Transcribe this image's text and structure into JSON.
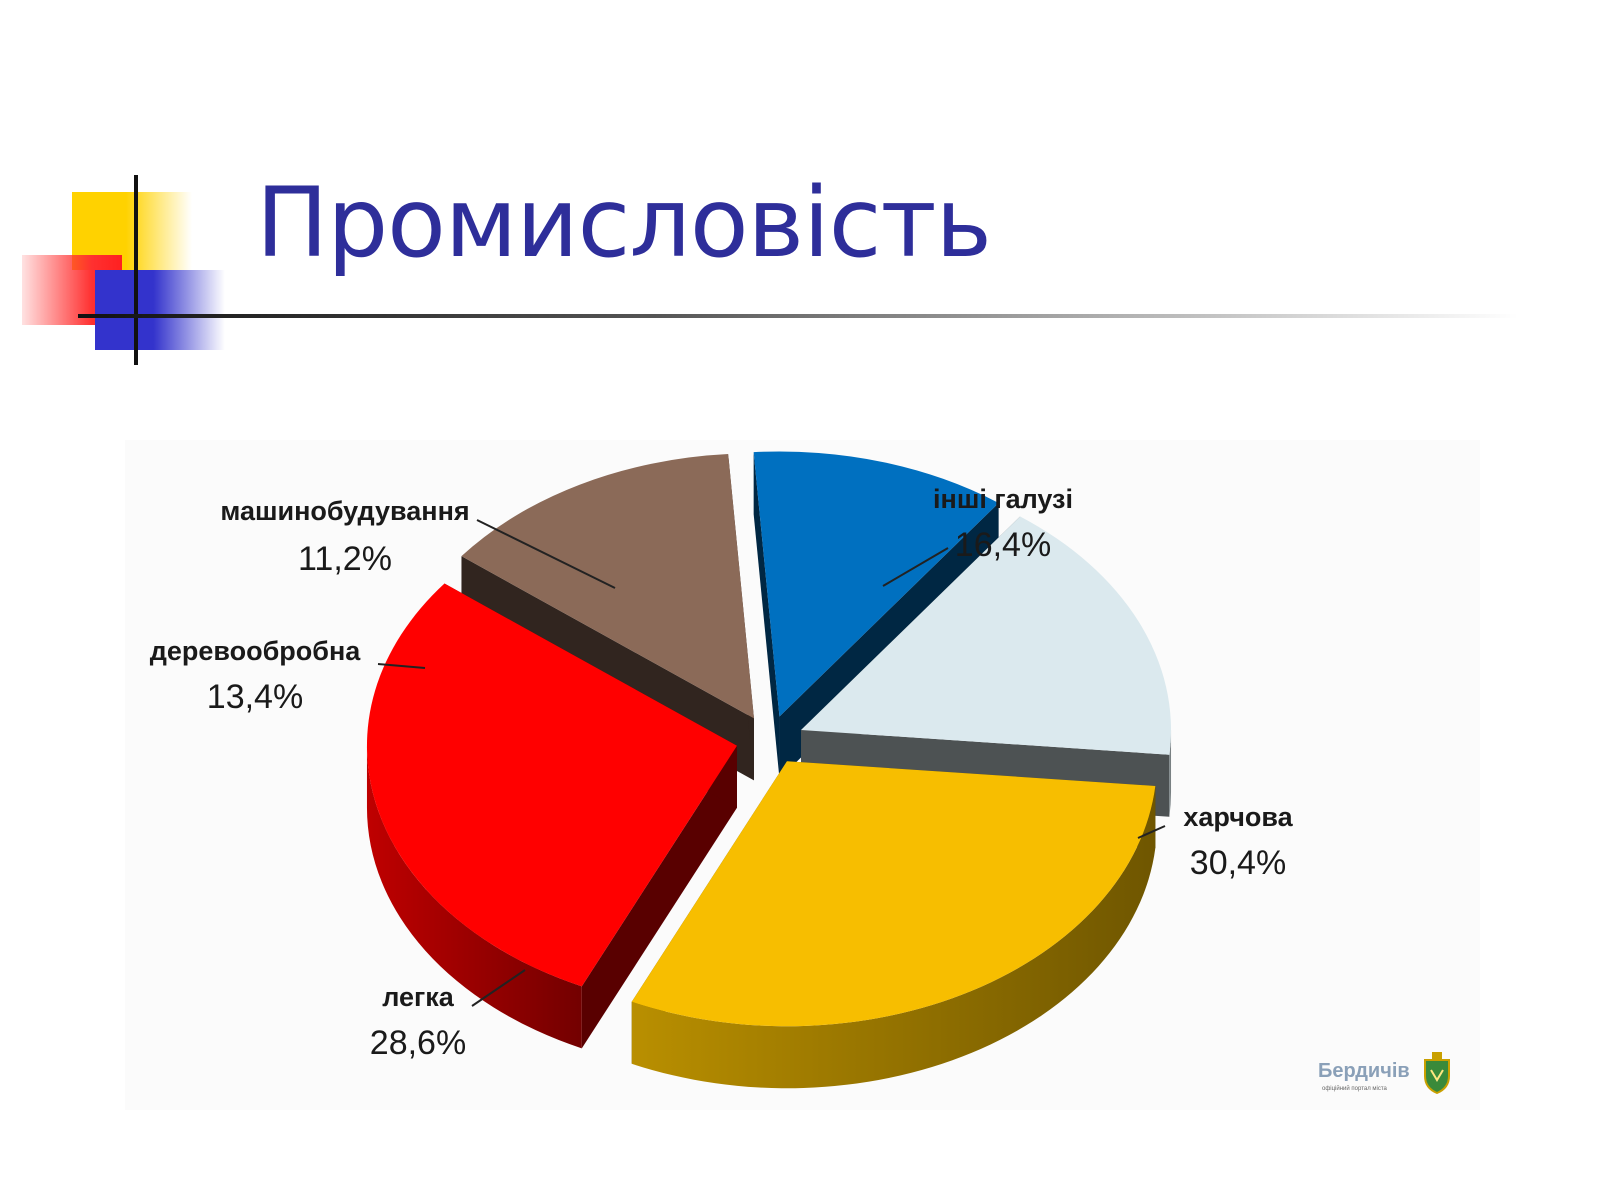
{
  "page": {
    "title": "Промисловість"
  },
  "chart_data": {
    "type": "pie",
    "title": "",
    "slices": [
      {
        "label": "машинобудування",
        "value": 11.2,
        "value_label": "11,2%",
        "color": "#0070c0"
      },
      {
        "label": "інші галузі",
        "value": 16.4,
        "value_label": "16,4%",
        "color": "#dbe9ee"
      },
      {
        "label": "харчова",
        "value": 30.4,
        "value_label": "30,4%",
        "color": "#f7be00"
      },
      {
        "label": "легка",
        "value": 28.6,
        "value_label": "28,6%",
        "color": "#ff0000"
      },
      {
        "label": "деревообробна",
        "value": 13.4,
        "value_label": "13,4%",
        "color": "#8b6a58"
      }
    ],
    "style": "3d-exploded"
  },
  "logo": {
    "text": "Бердичів",
    "subtitle": "офіційний портал міста"
  }
}
